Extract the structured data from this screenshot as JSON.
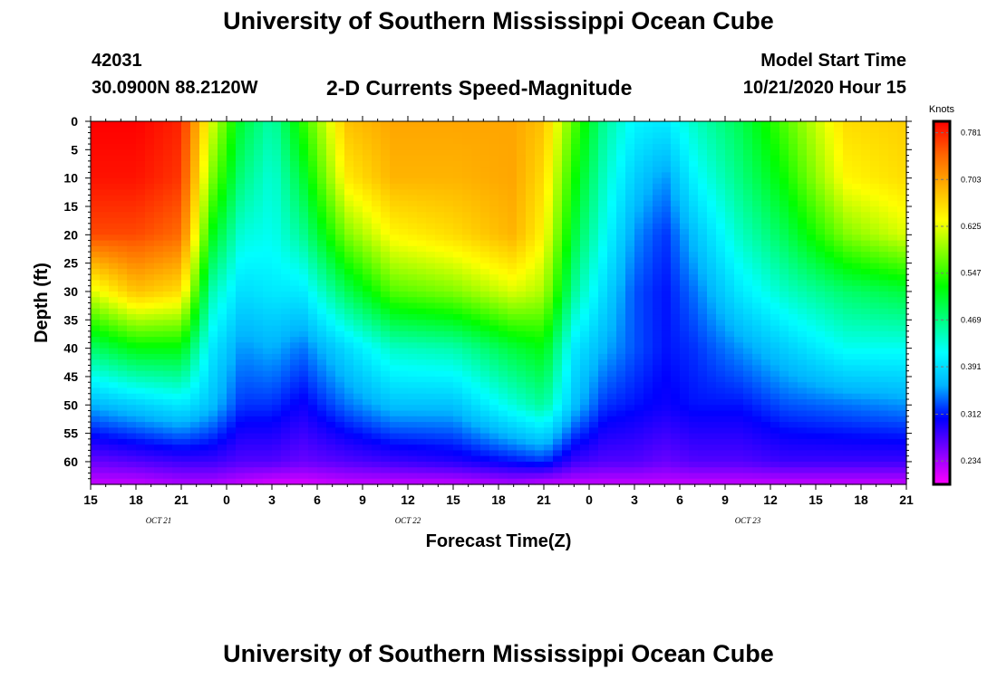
{
  "header": {
    "title": "University of Southern Mississippi Ocean Cube",
    "station_id": "42031",
    "station_coords": "30.0900N 88.2120W",
    "subtitle": "2-D Currents Speed-Magnitude",
    "model_start_label": "Model Start Time",
    "model_start_value": "10/21/2020 Hour 15"
  },
  "footer": {
    "title": "University of Southern Mississippi Ocean Cube"
  },
  "chart_data": {
    "type": "heatmap",
    "title": "2-D Currents Speed-Magnitude",
    "xlabel": "Forecast Time(Z)",
    "ylabel": "Depth (ft)",
    "x_unit": "forecast hours from model start (10/21/2020 15Z)",
    "xlim": [
      0,
      54
    ],
    "ylim": [
      0,
      64
    ],
    "y_inverted": true,
    "x_ticks": [
      0,
      3,
      6,
      9,
      12,
      15,
      18,
      21,
      24,
      27,
      30,
      33,
      36,
      39,
      42,
      45,
      48,
      51,
      54
    ],
    "x_tick_labels": [
      "15",
      "18",
      "21",
      "0",
      "3",
      "6",
      "9",
      "12",
      "15",
      "18",
      "21",
      "0",
      "3",
      "6",
      "9",
      "12",
      "15",
      "18",
      "21"
    ],
    "y_ticks": [
      0,
      5,
      10,
      15,
      20,
      25,
      30,
      35,
      40,
      45,
      50,
      55,
      60
    ],
    "y_tick_labels": [
      "0",
      "5",
      "10",
      "15",
      "20",
      "25",
      "30",
      "35",
      "40",
      "45",
      "50",
      "55",
      "60"
    ],
    "date_labels": [
      {
        "x": 4.5,
        "text": "OCT 21"
      },
      {
        "x": 21,
        "text": "OCT 22"
      },
      {
        "x": 43.5,
        "text": "OCT 23"
      }
    ],
    "colorbar": {
      "unit": "Knots",
      "range": [
        0.195,
        0.8
      ],
      "tick_values": [
        0.781,
        0.703,
        0.625,
        0.547,
        0.469,
        0.391,
        0.312,
        0.234
      ],
      "tick_labels": [
        "0.781",
        "0.703",
        "0.625",
        "0.547",
        "0.469",
        "0.391",
        "0.312",
        "0.234"
      ],
      "colors": [
        "#ff00ff",
        "#8000ff",
        "#0000ff",
        "#00b4ff",
        "#00ffff",
        "#00ff80",
        "#00ff00",
        "#80ff00",
        "#ffff00",
        "#ffb400",
        "#ff6400",
        "#ff0000"
      ]
    },
    "grid_depths": [
      0,
      10,
      20,
      30,
      40,
      50,
      60,
      64
    ],
    "series": [
      {
        "hour": 0,
        "speeds": [
          0.8,
          0.79,
          0.76,
          0.62,
          0.48,
          0.36,
          0.26,
          0.22
        ]
      },
      {
        "hour": 3,
        "speeds": [
          0.8,
          0.79,
          0.76,
          0.68,
          0.52,
          0.38,
          0.27,
          0.22
        ]
      },
      {
        "hour": 6,
        "speeds": [
          0.78,
          0.77,
          0.74,
          0.66,
          0.52,
          0.4,
          0.28,
          0.23
        ]
      },
      {
        "hour": 8,
        "speeds": [
          0.62,
          0.58,
          0.52,
          0.45,
          0.4,
          0.37,
          0.28,
          0.23
        ]
      },
      {
        "hour": 10,
        "speeds": [
          0.5,
          0.47,
          0.43,
          0.39,
          0.35,
          0.32,
          0.27,
          0.22
        ]
      },
      {
        "hour": 12,
        "speeds": [
          0.45,
          0.43,
          0.42,
          0.4,
          0.36,
          0.32,
          0.27,
          0.21
        ]
      },
      {
        "hour": 14,
        "speeds": [
          0.54,
          0.5,
          0.46,
          0.4,
          0.34,
          0.3,
          0.26,
          0.21
        ]
      },
      {
        "hour": 17,
        "speeds": [
          0.68,
          0.65,
          0.58,
          0.49,
          0.39,
          0.34,
          0.27,
          0.22
        ]
      },
      {
        "hour": 20,
        "speeds": [
          0.7,
          0.69,
          0.64,
          0.56,
          0.44,
          0.37,
          0.28,
          0.22
        ]
      },
      {
        "hour": 24,
        "speeds": [
          0.7,
          0.69,
          0.66,
          0.58,
          0.45,
          0.37,
          0.29,
          0.22
        ]
      },
      {
        "hour": 28,
        "speeds": [
          0.7,
          0.7,
          0.69,
          0.62,
          0.5,
          0.43,
          0.31,
          0.23
        ]
      },
      {
        "hour": 30,
        "speeds": [
          0.68,
          0.66,
          0.64,
          0.6,
          0.52,
          0.46,
          0.32,
          0.22
        ]
      },
      {
        "hour": 32,
        "speeds": [
          0.56,
          0.53,
          0.5,
          0.46,
          0.4,
          0.37,
          0.28,
          0.22
        ]
      },
      {
        "hour": 34,
        "speeds": [
          0.46,
          0.44,
          0.42,
          0.39,
          0.36,
          0.32,
          0.27,
          0.22
        ]
      },
      {
        "hour": 36,
        "speeds": [
          0.41,
          0.38,
          0.35,
          0.33,
          0.33,
          0.31,
          0.27,
          0.22
        ]
      },
      {
        "hour": 38,
        "speeds": [
          0.4,
          0.35,
          0.32,
          0.31,
          0.31,
          0.3,
          0.26,
          0.22
        ]
      },
      {
        "hour": 40,
        "speeds": [
          0.44,
          0.41,
          0.37,
          0.34,
          0.32,
          0.31,
          0.27,
          0.22
        ]
      },
      {
        "hour": 43,
        "speeds": [
          0.49,
          0.47,
          0.44,
          0.4,
          0.35,
          0.31,
          0.27,
          0.22
        ]
      },
      {
        "hour": 46,
        "speeds": [
          0.56,
          0.53,
          0.49,
          0.44,
          0.38,
          0.33,
          0.28,
          0.22
        ]
      },
      {
        "hour": 50,
        "speeds": [
          0.66,
          0.64,
          0.58,
          0.48,
          0.42,
          0.34,
          0.28,
          0.22
        ]
      },
      {
        "hour": 54,
        "speeds": [
          0.67,
          0.66,
          0.62,
          0.5,
          0.42,
          0.35,
          0.28,
          0.22
        ]
      }
    ]
  }
}
